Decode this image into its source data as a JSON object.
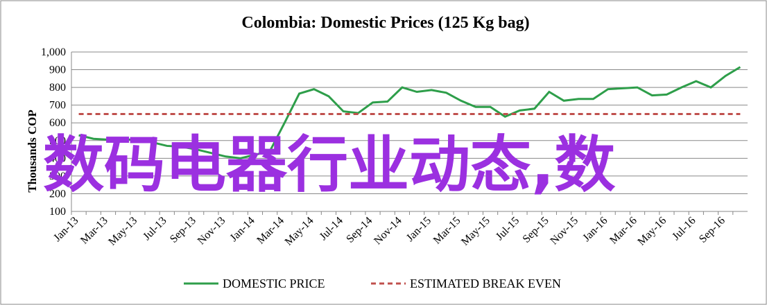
{
  "chart_data": {
    "type": "line",
    "title": "Colombia:  Domestic Prices (125 Kg bag)",
    "y_label": "Thousands COP",
    "categories": [
      "Jan-13",
      null,
      "Mar-13",
      null,
      "May-13",
      null,
      "Jul-13",
      null,
      "Sep-13",
      null,
      "Nov-13",
      null,
      "Jan-14",
      null,
      "Mar-14",
      null,
      "May-14",
      null,
      "Jul-14",
      null,
      "Sep-14",
      null,
      "Nov-14",
      null,
      "Jan-15",
      null,
      "Mar-15",
      null,
      "May-15",
      null,
      "Jul-15",
      null,
      "Sep-15",
      null,
      "Nov-15",
      null,
      "Jan-16",
      null,
      "Mar-16",
      null,
      "May-16",
      null,
      "Jul-16",
      null,
      "Sep-16",
      null
    ],
    "series": [
      {
        "name": "DOMESTIC PRICE",
        "color": "#2e9e4a",
        "dashed": false,
        "values": [
          530,
          510,
          505,
          510,
          500,
          490,
          470,
          465,
          450,
          430,
          410,
          400,
          420,
          440,
          600,
          765,
          790,
          750,
          665,
          655,
          715,
          720,
          800,
          775,
          785,
          770,
          725,
          690,
          690,
          635,
          670,
          680,
          775,
          725,
          735,
          735,
          790,
          795,
          800,
          755,
          760,
          800,
          835,
          800,
          865,
          915
        ]
      },
      {
        "name": "ESTIMATED BREAK EVEN",
        "color": "#c0504d",
        "dashed": true,
        "values": [
          650,
          650,
          650,
          650,
          650,
          650,
          650,
          650,
          650,
          650,
          650,
          650,
          650,
          650,
          650,
          650,
          650,
          650,
          650,
          650,
          650,
          650,
          650,
          650,
          650,
          650,
          650,
          650,
          650,
          650,
          650,
          650,
          650,
          650,
          650,
          650,
          650,
          650,
          650,
          650,
          650,
          650,
          650,
          650,
          650,
          650
        ]
      }
    ],
    "ylim": [
      100,
      1000
    ],
    "yticks": [
      100,
      200,
      300,
      400,
      500,
      600,
      700,
      800,
      900,
      {
        "value": 1000,
        "label": "1,000"
      }
    ],
    "grid": true,
    "legend": "bottom"
  },
  "overlay_text": "数码电器行业动态,数"
}
